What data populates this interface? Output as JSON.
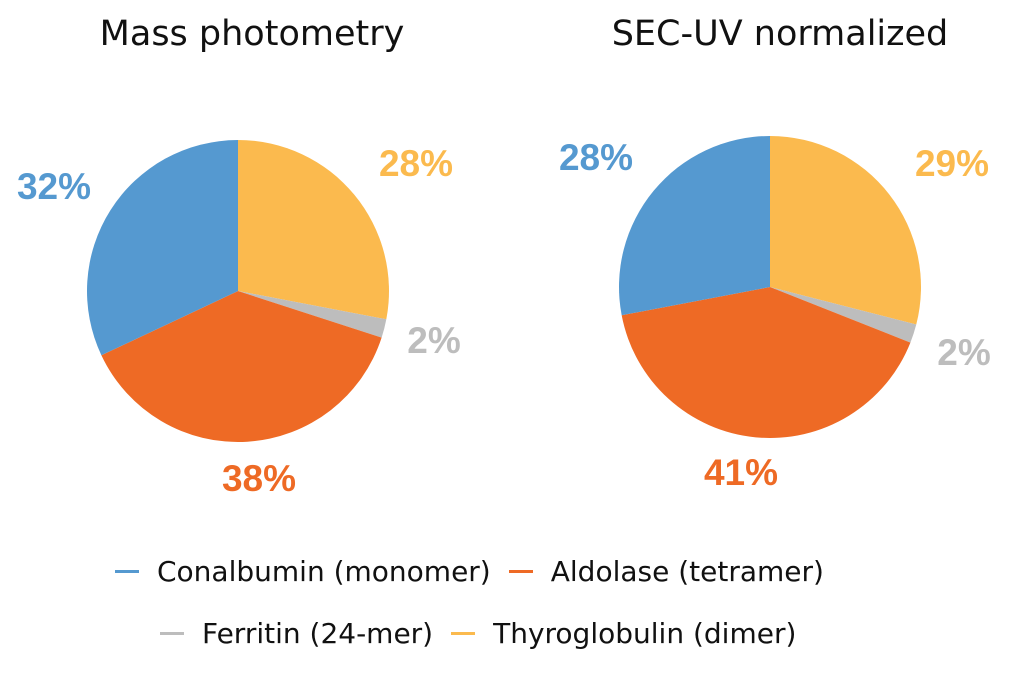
{
  "chart_data": [
    {
      "type": "pie",
      "title": "Mass photometry",
      "slices": [
        {
          "name": "Thyroglobulin (dimer)",
          "value": 28,
          "label": "28%"
        },
        {
          "name": "Ferritin (24-mer)",
          "value": 2,
          "label": "2%"
        },
        {
          "name": "Aldolase (tetramer)",
          "value": 38,
          "label": "38%"
        },
        {
          "name": "Conalbumin (monomer)",
          "value": 32,
          "label": "32%"
        }
      ]
    },
    {
      "type": "pie",
      "title": "SEC-UV normalized",
      "slices": [
        {
          "name": "Thyroglobulin (dimer)",
          "value": 29,
          "label": "29%"
        },
        {
          "name": "Ferritin (24-mer)",
          "value": 2,
          "label": "2%"
        },
        {
          "name": "Aldolase (tetramer)",
          "value": 41,
          "label": "41%"
        },
        {
          "name": "Conalbumin (monomer)",
          "value": 28,
          "label": "28%"
        }
      ]
    }
  ],
  "colors": {
    "Conalbumin (monomer)": "#5599D0",
    "Aldolase (tetramer)": "#EE6A25",
    "Ferritin (24-mer)": "#BDBDBD",
    "Thyroglobulin (dimer)": "#FBBA4E"
  },
  "legend": [
    {
      "label": "Conalbumin (monomer)"
    },
    {
      "label": "Aldolase (tetramer)"
    },
    {
      "label": "Ferritin (24-mer)"
    },
    {
      "label": "Thyroglobulin (dimer)"
    }
  ]
}
